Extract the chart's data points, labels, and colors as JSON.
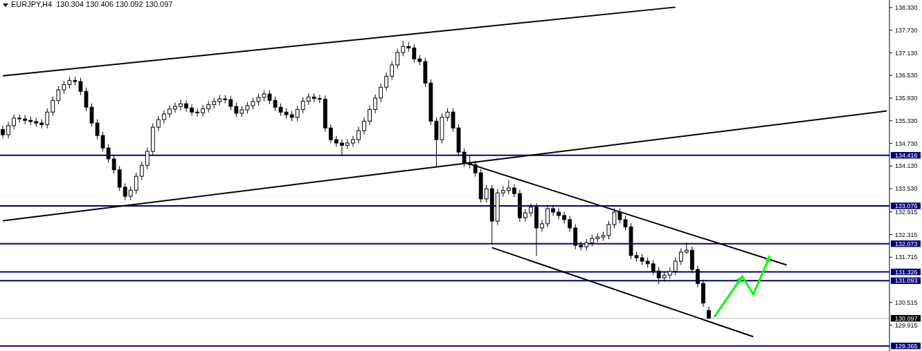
{
  "chart_data": {
    "type": "candlestick",
    "title": "EURJPY,H4  130.304 130.406 130.092 130.097",
    "categories": [
      null,
      null,
      null,
      null,
      null,
      null,
      null,
      null,
      null,
      null,
      null,
      null,
      null,
      null,
      null,
      null,
      null,
      null,
      null,
      null,
      null,
      null,
      null,
      null,
      null,
      null,
      null,
      null,
      null,
      null,
      null,
      null,
      null,
      null,
      null,
      null,
      null,
      null,
      null,
      null,
      null,
      null,
      null,
      null,
      null,
      null,
      null,
      null,
      null,
      null,
      null,
      null,
      null,
      null,
      null,
      null,
      null,
      null,
      null,
      null,
      null,
      null,
      null,
      null,
      null,
      null,
      null,
      null,
      null,
      null,
      null,
      null,
      null,
      null,
      null,
      null,
      null,
      null,
      null,
      null,
      null,
      null,
      null,
      null,
      null,
      null,
      null,
      null,
      null,
      null,
      null,
      null,
      null,
      null,
      null,
      null,
      null,
      null,
      null,
      null,
      null,
      null,
      null,
      null,
      null,
      null,
      null,
      null,
      null,
      null,
      null,
      null,
      null,
      null,
      null,
      null,
      null,
      null,
      null,
      null,
      null,
      null,
      null,
      null,
      null,
      null,
      null,
      null,
      null,
      null,
      null,
      null,
      null,
      null,
      null,
      null,
      null,
      null,
      null,
      null,
      null,
      null,
      null,
      null,
      null,
      null,
      null,
      null,
      null,
      null,
      null,
      null,
      null,
      null,
      null,
      null,
      null,
      null,
      null,
      null
    ],
    "ohlc": [
      [
        135.1,
        135.2,
        134.86,
        134.96
      ],
      [
        134.96,
        135.3,
        134.86,
        135.2
      ],
      [
        135.2,
        135.5,
        135.1,
        135.4
      ],
      [
        135.4,
        135.5,
        135.28,
        135.38
      ],
      [
        135.38,
        135.48,
        135.24,
        135.34
      ],
      [
        135.34,
        135.44,
        135.21,
        135.31
      ],
      [
        135.31,
        135.41,
        135.17,
        135.27
      ],
      [
        135.27,
        135.37,
        135.13,
        135.23
      ],
      [
        135.23,
        135.66,
        135.13,
        135.56
      ],
      [
        135.56,
        135.97,
        135.46,
        135.87
      ],
      [
        135.87,
        136.25,
        135.77,
        136.15
      ],
      [
        136.15,
        136.39,
        136.05,
        136.29
      ],
      [
        136.29,
        136.5,
        136.19,
        136.4
      ],
      [
        136.4,
        136.5,
        136.27,
        136.37
      ],
      [
        136.37,
        136.47,
        136.01,
        136.11
      ],
      [
        136.11,
        136.21,
        135.59,
        135.69
      ],
      [
        135.69,
        135.79,
        135.17,
        135.27
      ],
      [
        135.27,
        135.37,
        134.84,
        134.94
      ],
      [
        134.94,
        135.04,
        134.51,
        134.61
      ],
      [
        134.61,
        134.71,
        134.22,
        134.32
      ],
      [
        134.32,
        134.42,
        133.93,
        134.03
      ],
      [
        134.03,
        134.13,
        133.47,
        133.57
      ],
      [
        133.57,
        133.67,
        133.23,
        133.33
      ],
      [
        133.33,
        133.59,
        133.23,
        133.49
      ],
      [
        133.49,
        133.96,
        133.39,
        133.86
      ],
      [
        133.86,
        134.25,
        133.76,
        134.15
      ],
      [
        134.15,
        134.62,
        134.05,
        134.52
      ],
      [
        134.52,
        135.26,
        134.42,
        135.16
      ],
      [
        135.16,
        135.46,
        135.06,
        135.36
      ],
      [
        135.36,
        135.61,
        135.26,
        135.51
      ],
      [
        135.51,
        135.74,
        135.41,
        135.64
      ],
      [
        135.64,
        135.81,
        135.54,
        135.71
      ],
      [
        135.71,
        135.88,
        135.61,
        135.78
      ],
      [
        135.78,
        135.88,
        135.57,
        135.67
      ],
      [
        135.67,
        135.77,
        135.46,
        135.56
      ],
      [
        135.56,
        135.66,
        135.44,
        135.54
      ],
      [
        135.54,
        135.75,
        135.44,
        135.65
      ],
      [
        135.65,
        135.86,
        135.55,
        135.76
      ],
      [
        135.76,
        135.94,
        135.66,
        135.84
      ],
      [
        135.84,
        136.01,
        135.74,
        135.91
      ],
      [
        135.91,
        136.01,
        135.79,
        135.89
      ],
      [
        135.89,
        135.99,
        135.61,
        135.71
      ],
      [
        135.71,
        135.81,
        135.43,
        135.53
      ],
      [
        135.53,
        135.72,
        135.43,
        135.62
      ],
      [
        135.62,
        135.83,
        135.52,
        135.73
      ],
      [
        135.73,
        135.94,
        135.63,
        135.84
      ],
      [
        135.84,
        136.05,
        135.74,
        135.95
      ],
      [
        135.95,
        136.14,
        135.85,
        136.04
      ],
      [
        136.04,
        136.14,
        135.77,
        135.87
      ],
      [
        135.87,
        135.97,
        135.59,
        135.69
      ],
      [
        135.69,
        135.79,
        135.46,
        135.56
      ],
      [
        135.56,
        135.66,
        135.39,
        135.49
      ],
      [
        135.49,
        135.59,
        135.32,
        135.42
      ],
      [
        135.42,
        135.73,
        135.32,
        135.63
      ],
      [
        135.63,
        135.95,
        135.53,
        135.85
      ],
      [
        135.85,
        136.06,
        135.75,
        135.96
      ],
      [
        135.96,
        136.06,
        135.82,
        135.92
      ],
      [
        135.92,
        136.02,
        135.8,
        135.9
      ],
      [
        135.9,
        136.0,
        135.04,
        135.14
      ],
      [
        135.14,
        135.24,
        134.73,
        134.83
      ],
      [
        134.83,
        134.93,
        134.64,
        134.74
      ],
      [
        134.74,
        134.84,
        134.4,
        134.68
      ],
      [
        134.68,
        134.84,
        134.58,
        134.74
      ],
      [
        134.74,
        134.93,
        134.64,
        134.83
      ],
      [
        134.83,
        135.17,
        134.73,
        135.07
      ],
      [
        135.07,
        135.42,
        134.97,
        135.32
      ],
      [
        135.32,
        135.73,
        135.22,
        135.63
      ],
      [
        135.63,
        136.03,
        135.53,
        135.93
      ],
      [
        135.93,
        136.32,
        135.83,
        136.22
      ],
      [
        136.22,
        136.61,
        136.12,
        136.51
      ],
      [
        136.51,
        136.91,
        136.41,
        136.81
      ],
      [
        136.81,
        137.24,
        136.71,
        137.14
      ],
      [
        137.14,
        137.45,
        137.04,
        137.3
      ],
      [
        137.3,
        137.42,
        137.16,
        137.26
      ],
      [
        137.26,
        137.36,
        136.87,
        136.97
      ],
      [
        136.97,
        137.07,
        136.8,
        136.9
      ],
      [
        136.9,
        137.0,
        136.23,
        136.33
      ],
      [
        136.33,
        136.43,
        135.22,
        135.32
      ],
      [
        135.32,
        135.42,
        134.1,
        134.83
      ],
      [
        134.83,
        135.52,
        134.73,
        135.42
      ],
      [
        135.42,
        135.66,
        135.32,
        135.56
      ],
      [
        135.56,
        135.66,
        135.04,
        135.14
      ],
      [
        135.14,
        135.24,
        134.4,
        134.5
      ],
      [
        134.5,
        134.6,
        134.11,
        134.21
      ],
      [
        134.21,
        134.41,
        134.07,
        134.17
      ],
      [
        134.17,
        134.27,
        133.85,
        133.95
      ],
      [
        133.95,
        134.05,
        133.16,
        133.26
      ],
      [
        133.26,
        133.63,
        133.16,
        133.53
      ],
      [
        133.53,
        133.63,
        132.05,
        132.67
      ],
      [
        132.67,
        133.52,
        132.57,
        133.42
      ],
      [
        133.42,
        133.6,
        133.32,
        133.48
      ],
      [
        133.48,
        133.75,
        133.38,
        133.55
      ],
      [
        133.55,
        133.65,
        133.3,
        133.4
      ],
      [
        133.4,
        133.5,
        132.66,
        132.76
      ],
      [
        132.76,
        132.99,
        132.66,
        132.89
      ],
      [
        132.89,
        133.14,
        132.79,
        133.04
      ],
      [
        133.04,
        133.14,
        131.75,
        132.49
      ],
      [
        132.49,
        132.7,
        132.39,
        132.6
      ],
      [
        132.6,
        133.1,
        132.5,
        133.0
      ],
      [
        133.0,
        133.1,
        132.81,
        132.91
      ],
      [
        132.91,
        133.01,
        132.72,
        132.82
      ],
      [
        132.82,
        132.92,
        132.61,
        132.71
      ],
      [
        132.71,
        132.81,
        132.39,
        132.49
      ],
      [
        132.49,
        132.59,
        131.93,
        132.03
      ],
      [
        132.03,
        132.13,
        131.89,
        131.99
      ],
      [
        131.99,
        132.2,
        131.89,
        132.1
      ],
      [
        132.1,
        132.31,
        132.0,
        132.21
      ],
      [
        132.21,
        132.35,
        132.11,
        132.25
      ],
      [
        132.25,
        132.39,
        132.15,
        132.29
      ],
      [
        132.29,
        132.68,
        132.19,
        132.58
      ],
      [
        132.58,
        133.01,
        132.48,
        132.91
      ],
      [
        132.91,
        133.01,
        132.61,
        132.71
      ],
      [
        132.71,
        132.81,
        132.42,
        132.52
      ],
      [
        132.52,
        132.62,
        131.66,
        131.76
      ],
      [
        131.76,
        131.86,
        131.6,
        131.7
      ],
      [
        131.7,
        131.8,
        131.51,
        131.61
      ],
      [
        131.61,
        131.71,
        131.44,
        131.54
      ],
      [
        131.54,
        131.64,
        131.25,
        131.35
      ],
      [
        131.35,
        131.45,
        131.0,
        131.17
      ],
      [
        131.17,
        131.34,
        131.07,
        131.24
      ],
      [
        131.24,
        131.44,
        131.14,
        131.34
      ],
      [
        131.34,
        131.71,
        131.24,
        131.61
      ],
      [
        131.61,
        131.95,
        131.51,
        131.85
      ],
      [
        131.85,
        132.1,
        131.8,
        131.9
      ],
      [
        131.9,
        132.0,
        131.29,
        131.39
      ],
      [
        131.39,
        131.49,
        130.92,
        131.02
      ],
      [
        131.02,
        131.12,
        130.4,
        130.5
      ],
      [
        130.304,
        130.406,
        130.092,
        130.097
      ],
      null,
      null,
      null,
      null,
      null,
      null,
      null,
      null,
      null,
      null,
      null,
      null,
      null,
      null,
      null,
      null,
      null,
      null,
      null,
      null,
      null,
      null,
      null,
      null,
      null,
      null,
      null,
      null,
      null,
      null,
      null,
      null
    ],
    "series": [
      {
        "type": "line",
        "color": "#000000",
        "values": [
          136.52,
          null,
          null,
          null,
          null,
          null,
          null,
          null,
          null,
          null,
          null,
          null,
          null,
          null,
          null,
          null,
          null,
          null,
          null,
          null,
          null,
          null,
          null,
          null,
          null,
          null,
          null,
          null,
          null,
          null,
          null,
          null,
          null,
          null,
          null,
          null,
          null,
          null,
          null,
          null,
          null,
          null,
          null,
          null,
          null,
          null,
          null,
          null,
          null,
          null,
          null,
          null,
          null,
          null,
          null,
          null,
          null,
          null,
          null,
          null,
          null,
          null,
          null,
          null,
          null,
          null,
          null,
          null,
          null,
          null,
          null,
          null,
          null,
          null,
          null,
          null,
          null,
          null,
          null,
          null,
          null,
          null,
          null,
          null,
          null,
          null,
          null,
          null,
          null,
          null,
          null,
          null,
          null,
          null,
          null,
          null,
          null,
          null,
          null,
          null,
          null,
          null,
          null,
          null,
          null,
          null,
          null,
          null,
          null,
          null,
          null,
          null,
          null,
          null,
          null,
          null,
          null,
          null,
          null,
          null,
          null,
          138.34,
          null,
          null,
          null,
          null,
          null,
          null,
          null,
          null,
          null,
          null,
          null,
          null,
          null,
          null,
          null,
          null,
          null,
          null,
          null,
          null,
          null,
          null,
          null,
          null,
          null,
          null,
          null,
          null,
          null,
          null,
          null,
          null,
          null,
          null,
          null,
          null,
          null,
          null
        ]
      },
      {
        "type": "line",
        "color": "#000000",
        "values": [
          132.68,
          null,
          null,
          null,
          null,
          null,
          null,
          null,
          null,
          null,
          null,
          null,
          null,
          null,
          null,
          null,
          null,
          null,
          null,
          null,
          null,
          null,
          null,
          null,
          null,
          null,
          null,
          null,
          null,
          null,
          null,
          null,
          null,
          null,
          null,
          null,
          null,
          null,
          null,
          null,
          null,
          null,
          null,
          null,
          null,
          null,
          null,
          null,
          null,
          null,
          null,
          null,
          null,
          null,
          null,
          null,
          null,
          null,
          null,
          null,
          null,
          null,
          null,
          null,
          null,
          null,
          null,
          null,
          null,
          null,
          null,
          null,
          null,
          null,
          null,
          null,
          null,
          null,
          null,
          null,
          null,
          null,
          null,
          null,
          null,
          null,
          null,
          null,
          null,
          null,
          null,
          null,
          null,
          null,
          null,
          null,
          null,
          null,
          null,
          null,
          null,
          null,
          null,
          null,
          null,
          null,
          null,
          null,
          null,
          null,
          null,
          null,
          null,
          null,
          null,
          null,
          null,
          null,
          null,
          null,
          null,
          null,
          null,
          null,
          null,
          null,
          null,
          null,
          null,
          null,
          null,
          null,
          null,
          null,
          null,
          null,
          null,
          null,
          null,
          null,
          null,
          null,
          null,
          null,
          null,
          null,
          null,
          null,
          null,
          null,
          null,
          null,
          null,
          null,
          null,
          null,
          null,
          null,
          null,
          135.59
        ]
      },
      {
        "type": "line",
        "color": "#000000",
        "values": [
          null,
          null,
          null,
          null,
          null,
          null,
          null,
          null,
          null,
          null,
          null,
          null,
          null,
          null,
          null,
          null,
          null,
          null,
          null,
          null,
          null,
          null,
          null,
          null,
          null,
          null,
          null,
          null,
          null,
          null,
          null,
          null,
          null,
          null,
          null,
          null,
          null,
          null,
          null,
          null,
          null,
          null,
          null,
          null,
          null,
          null,
          null,
          null,
          null,
          null,
          null,
          null,
          null,
          null,
          null,
          null,
          null,
          null,
          null,
          null,
          null,
          null,
          null,
          null,
          null,
          null,
          null,
          null,
          null,
          null,
          null,
          null,
          null,
          null,
          null,
          null,
          null,
          null,
          null,
          null,
          null,
          null,
          null,
          134.23,
          null,
          null,
          null,
          null,
          null,
          null,
          null,
          null,
          null,
          null,
          null,
          null,
          null,
          null,
          null,
          null,
          null,
          null,
          null,
          null,
          null,
          null,
          null,
          null,
          null,
          null,
          null,
          null,
          null,
          null,
          null,
          null,
          null,
          null,
          null,
          null,
          null,
          null,
          null,
          null,
          null,
          null,
          null,
          null,
          null,
          null,
          null,
          null,
          null,
          null,
          null,
          null,
          null,
          null,
          null,
          null,
          null,
          131.51,
          null,
          null,
          null,
          null,
          null,
          null,
          null,
          null,
          null,
          null,
          null,
          null,
          null,
          null,
          null,
          null,
          null,
          null
        ]
      },
      {
        "type": "line",
        "color": "#000000",
        "values": [
          null,
          null,
          null,
          null,
          null,
          null,
          null,
          null,
          null,
          null,
          null,
          null,
          null,
          null,
          null,
          null,
          null,
          null,
          null,
          null,
          null,
          null,
          null,
          null,
          null,
          null,
          null,
          null,
          null,
          null,
          null,
          null,
          null,
          null,
          null,
          null,
          null,
          null,
          null,
          null,
          null,
          null,
          null,
          null,
          null,
          null,
          null,
          null,
          null,
          null,
          null,
          null,
          null,
          null,
          null,
          null,
          null,
          null,
          null,
          null,
          null,
          null,
          null,
          null,
          null,
          null,
          null,
          null,
          null,
          null,
          null,
          null,
          null,
          null,
          null,
          null,
          null,
          null,
          null,
          null,
          null,
          null,
          null,
          null,
          null,
          null,
          null,
          null,
          131.97,
          null,
          null,
          null,
          null,
          null,
          null,
          null,
          null,
          null,
          null,
          null,
          null,
          null,
          null,
          null,
          null,
          null,
          null,
          null,
          null,
          null,
          null,
          null,
          null,
          null,
          null,
          null,
          null,
          null,
          null,
          null,
          null,
          null,
          null,
          null,
          null,
          null,
          null,
          null,
          null,
          null,
          null,
          null,
          null,
          null,
          null,
          129.61,
          null,
          null,
          null,
          null,
          null,
          null,
          null,
          null,
          null,
          null,
          null,
          null,
          null,
          null,
          null,
          null,
          null,
          null,
          null,
          null,
          null,
          null,
          null,
          null
        ]
      },
      {
        "type": "line",
        "color": "#00ff00",
        "values": [
          null,
          null,
          null,
          null,
          null,
          null,
          null,
          null,
          null,
          null,
          null,
          null,
          null,
          null,
          null,
          null,
          null,
          null,
          null,
          null,
          null,
          null,
          null,
          null,
          null,
          null,
          null,
          null,
          null,
          null,
          null,
          null,
          null,
          null,
          null,
          null,
          null,
          null,
          null,
          null,
          null,
          null,
          null,
          null,
          null,
          null,
          null,
          null,
          null,
          null,
          null,
          null,
          null,
          null,
          null,
          null,
          null,
          null,
          null,
          null,
          null,
          null,
          null,
          null,
          null,
          null,
          null,
          null,
          null,
          null,
          null,
          null,
          null,
          null,
          null,
          null,
          null,
          null,
          null,
          null,
          null,
          null,
          null,
          null,
          null,
          null,
          null,
          null,
          null,
          null,
          null,
          null,
          null,
          null,
          null,
          null,
          null,
          null,
          null,
          null,
          null,
          null,
          null,
          null,
          null,
          null,
          null,
          null,
          null,
          null,
          null,
          null,
          null,
          null,
          null,
          null,
          null,
          null,
          null,
          null,
          null,
          null,
          null,
          null,
          null,
          null,
          null,
          null,
          130.13,
          null,
          null,
          null,
          null,
          131.21,
          null,
          130.73,
          null,
          null,
          131.76,
          null,
          null,
          null,
          null,
          null,
          null,
          null,
          null,
          null,
          null,
          null,
          null,
          null,
          null,
          null,
          null,
          null,
          null,
          null,
          null,
          null
        ]
      }
    ],
    "color": "#000000",
    "ylim": [
      129.23,
      138.53
    ],
    "yticks": [
      {
        "value": 138.33,
        "label": "138.330"
      },
      {
        "value": 137.73,
        "label": "137.730"
      },
      {
        "value": 137.13,
        "label": "137.130"
      },
      {
        "value": 136.53,
        "label": "136.530"
      },
      {
        "value": 135.93,
        "label": "135.930"
      },
      {
        "value": 135.33,
        "label": "135.330"
      },
      {
        "value": 134.73,
        "label": "134.730"
      },
      {
        "value": 134.13,
        "label": "134.130"
      },
      {
        "value": 133.53,
        "label": "133.530"
      },
      {
        "value": 132.915,
        "label": "132.915"
      },
      {
        "value": 132.315,
        "label": "132.315"
      },
      {
        "value": 131.715,
        "label": "131.715"
      },
      {
        "value": 130.515,
        "label": "130.515"
      },
      {
        "value": 129.915,
        "label": "129.915"
      }
    ],
    "tick_labels": "y",
    "ref_lines": [
      {
        "axis": "y",
        "value": 134.416,
        "label": "134.416",
        "color": "#000080"
      },
      {
        "axis": "y",
        "value": 133.076,
        "label": "133.076",
        "color": "#000080"
      },
      {
        "axis": "y",
        "value": 132.073,
        "label": "132.073",
        "color": "#000080"
      },
      {
        "axis": "y",
        "value": 131.326,
        "label": "131.326",
        "color": "#000080"
      },
      {
        "axis": "y",
        "value": 131.093,
        "label": "131.093",
        "color": "#000080"
      },
      {
        "axis": "y",
        "value": 130.097,
        "label": "130.097",
        "color": "#c0c0c0"
      },
      {
        "axis": "y",
        "value": 129.365,
        "label": "129.365",
        "color": "#000080"
      }
    ],
    "grid": false
  }
}
